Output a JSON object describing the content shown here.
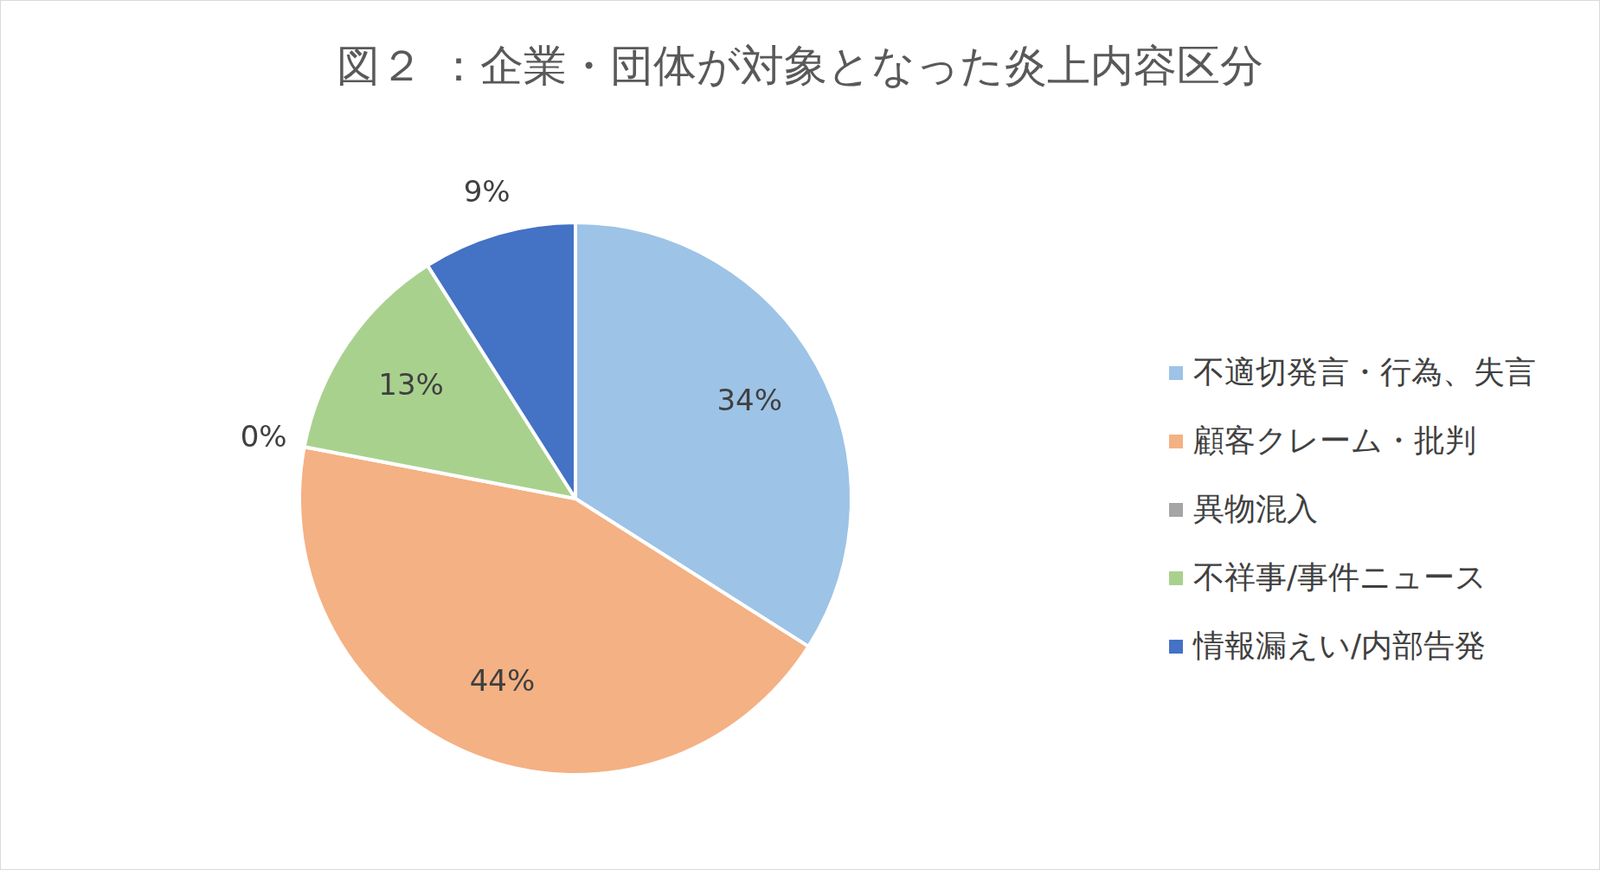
{
  "chart_data": {
    "type": "pie",
    "title": "図２ ：企業・団体が対象となった炎上内容区分",
    "categories": [
      "不適切発言・行為、失言",
      "顧客クレーム・批判",
      "異物混入",
      "不祥事/事件ニュース",
      "情報漏えい/内部告発"
    ],
    "values": [
      34,
      44,
      0,
      13,
      9
    ],
    "value_labels": [
      "34%",
      "44%",
      "0%",
      "13%",
      "9%"
    ],
    "colors": [
      "#9dc3e6",
      "#f4b183",
      "#a5a5a5",
      "#a9d18e",
      "#4472c4"
    ],
    "data_labels": true,
    "legend": "right"
  }
}
